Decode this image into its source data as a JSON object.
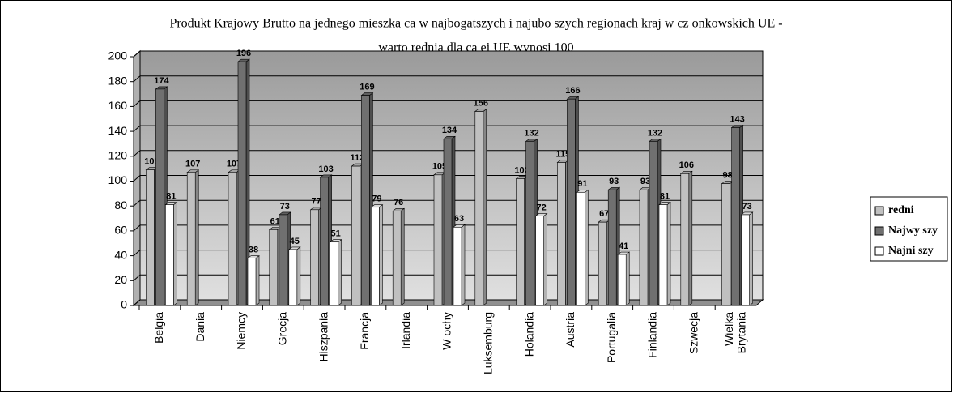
{
  "chart_data": {
    "type": "bar3d",
    "title": [
      "Produkt Krajowy Brutto na jednego mieszka  ca w najbogatszych i najubo  szych regionach kraj  w cz onkowskich UE -",
      "warto       rednia dla ca ej UE wynosi 100"
    ],
    "categories": [
      "Belgia",
      "Dania",
      "Niemcy",
      "Grecja",
      "Hiszpania",
      "Francja",
      "Irlandia",
      "W ochy",
      "Luksemburg",
      "Holandia",
      "Austria",
      "Portugalia",
      "Finlandia",
      "Szwecja",
      "Wielka\nBrytania"
    ],
    "series": [
      {
        "name": "redni",
        "color": "#c0c0c0",
        "values": [
          109,
          107,
          107,
          61,
          77,
          112,
          76,
          105,
          156,
          102,
          115,
          67,
          93,
          106,
          98
        ]
      },
      {
        "name": "Najwy szy",
        "color": "#707070",
        "values": [
          174,
          null,
          196,
          73,
          103,
          169,
          null,
          134,
          null,
          132,
          166,
          93,
          132,
          null,
          143
        ]
      },
      {
        "name": "Najni szy",
        "color": "#ffffff",
        "values": [
          81,
          null,
          38,
          45,
          51,
          79,
          null,
          63,
          null,
          72,
          91,
          41,
          81,
          null,
          73
        ]
      }
    ],
    "ylim": [
      0,
      200
    ],
    "yticks": [
      0,
      20,
      40,
      60,
      80,
      100,
      120,
      140,
      160,
      180,
      200
    ],
    "grid": true,
    "legend": "right"
  }
}
